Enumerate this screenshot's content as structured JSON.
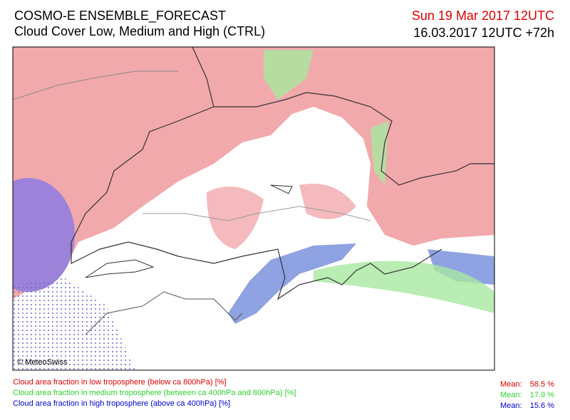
{
  "header": {
    "title": "COSMO-E ENSEMBLE_FORECAST",
    "subtitle": "Cloud Cover Low, Medium and High (CTRL)",
    "valid_time": "Sun 19 Mar 2017 12UTC",
    "run_time": "16.03.2017 12UTC +72h"
  },
  "map": {
    "copyright": "© MeteoSwiss"
  },
  "legend": [
    {
      "label": "Cloud area fraction in low troposphere (below ca 800hPa) [%]",
      "mean_label": "Mean:",
      "mean": "58.5 %"
    },
    {
      "label": "Cloud area fraction in medium troposphere (between ca 400hPa and 800hPa) [%]",
      "mean_label": "Mean:",
      "mean": "17.9 %"
    },
    {
      "label": "Cloud area fraction in high troposphere (above ca 400hPa) [%]",
      "mean_label": "Mean:",
      "mean": "15.6 %"
    }
  ]
}
